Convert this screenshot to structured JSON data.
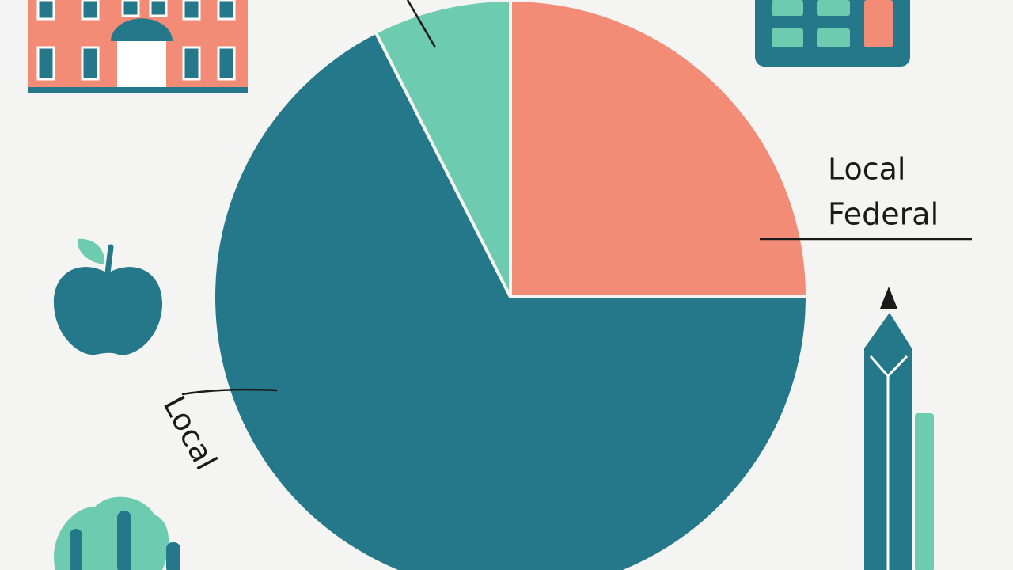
{
  "chart_data": {
    "type": "pie",
    "values": [
      25,
      67.5,
      7.5
    ],
    "colors": [
      "#f28c77",
      "#24788a",
      "#6dcbb0"
    ],
    "annotations": [
      "Local",
      "Federal",
      "Local"
    ]
  }
}
